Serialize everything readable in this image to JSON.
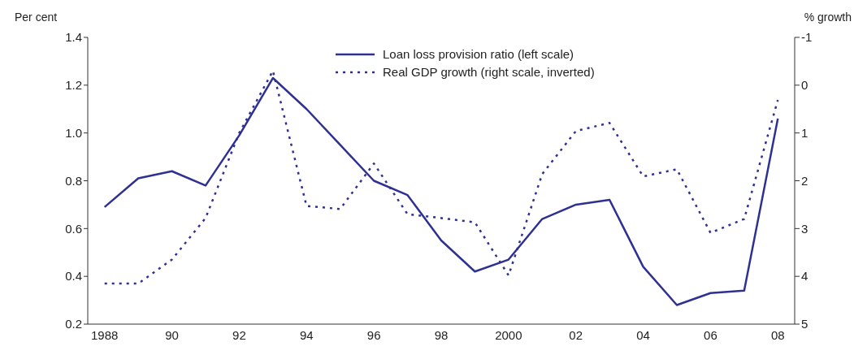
{
  "chart_data": {
    "type": "line",
    "ylabel": "Per cent",
    "y2label": "% growth",
    "categories": [
      "1988",
      null,
      "90",
      null,
      "92",
      null,
      "94",
      null,
      "96",
      null,
      "98",
      null,
      "2000",
      null,
      "02",
      null,
      "04",
      null,
      "06",
      null,
      "08"
    ],
    "series": [
      {
        "name": "Loan loss provision ratio (left scale)",
        "color": "#2e3192",
        "line_style": "solid",
        "values": [
          0.69,
          0.81,
          0.84,
          0.78,
          0.99,
          1.23,
          1.1,
          0.95,
          0.8,
          0.74,
          0.55,
          0.42,
          0.47,
          0.64,
          0.7,
          0.72,
          0.44,
          0.28,
          0.33,
          0.34,
          1.06
        ]
      },
      {
        "name": "Real GDP growth (right scale, inverted)",
        "color": "#2e3192",
        "line_style": "dotted",
        "axis": "y2",
        "values": [
          4.15,
          4.15,
          3.65,
          2.78,
          1.0,
          -0.3,
          2.53,
          2.59,
          1.64,
          2.7,
          2.78,
          2.87,
          3.98,
          1.86,
          0.96,
          0.79,
          1.91,
          1.76,
          3.09,
          2.8,
          0.31
        ]
      }
    ],
    "ylim": [
      0.2,
      1.4
    ],
    "yticks": [
      {
        "value": 0.2,
        "label": "0.2"
      },
      {
        "value": 0.4,
        "label": "0.4"
      },
      {
        "value": 0.6,
        "label": "0.6"
      },
      {
        "value": 0.8,
        "label": "0.8"
      },
      {
        "value": 1.0,
        "label": "1.0"
      },
      {
        "value": 1.2,
        "label": "1.2"
      },
      {
        "value": 1.4,
        "label": "1.4"
      }
    ],
    "y2lim": [
      5,
      -1
    ],
    "y2ticks": [
      5,
      4,
      3,
      2,
      1,
      0,
      -1
    ],
    "legend": "top",
    "grid": false,
    "marker": "none"
  }
}
